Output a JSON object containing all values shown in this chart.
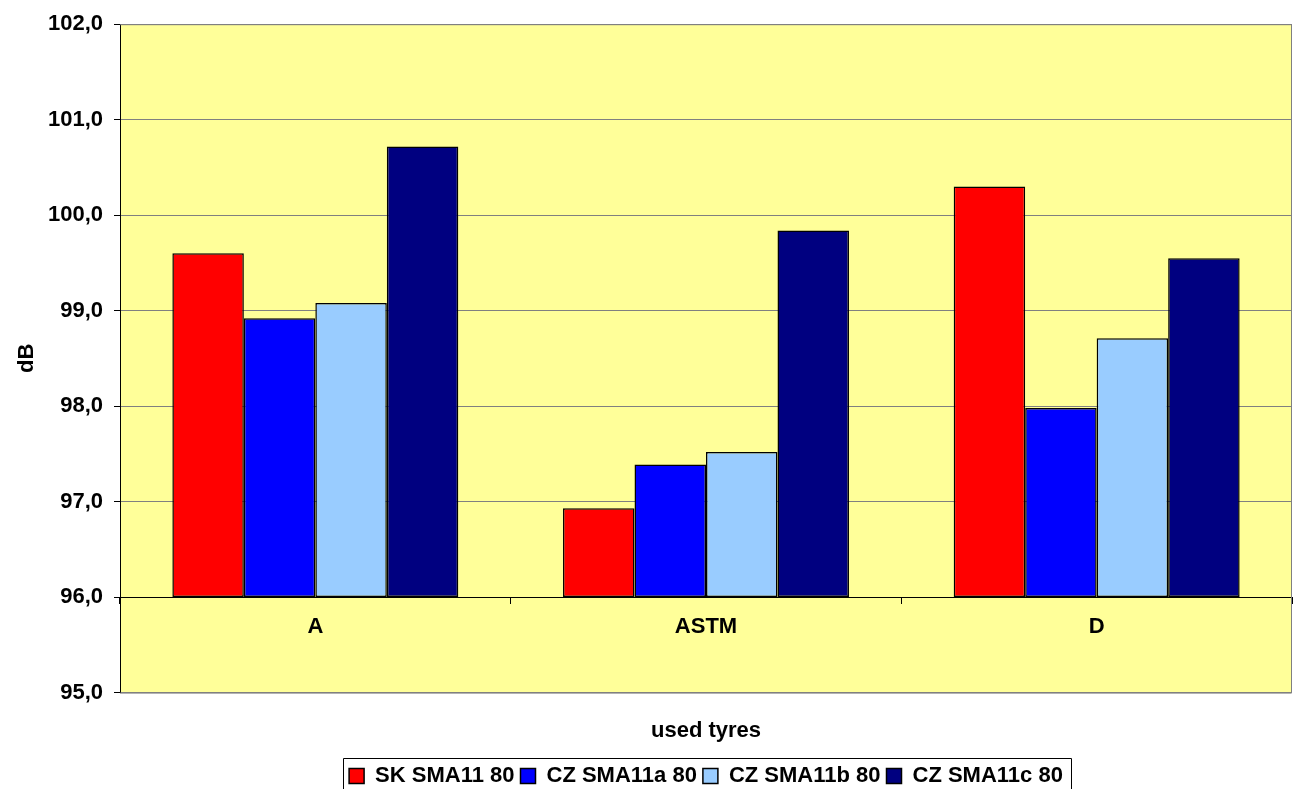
{
  "chart_data": {
    "type": "bar",
    "categories": [
      "A",
      "ASTM",
      "D"
    ],
    "xlabel": "used tyres",
    "ylabel": "dB",
    "ylim": [
      95,
      102
    ],
    "yticks": [
      {
        "value": 95,
        "label": "95,0"
      },
      {
        "value": 96,
        "label": "96,0"
      },
      {
        "value": 97,
        "label": "97,0"
      },
      {
        "value": 98,
        "label": "98,0"
      },
      {
        "value": 99,
        "label": "99,0"
      },
      {
        "value": 100,
        "label": "100,0"
      },
      {
        "value": 101,
        "label": "101,0"
      },
      {
        "value": 102,
        "label": "102,0"
      }
    ],
    "grid": "y",
    "legend": "bottom",
    "series": [
      {
        "name": "SK SMA11 80",
        "color": "#ff0000",
        "base": [
          96,
          96,
          96
        ],
        "values": [
          3.6,
          0.93,
          4.3
        ]
      },
      {
        "name": "CZ SMA11a 80",
        "color": "#0000ff",
        "base": [
          96,
          96,
          96
        ],
        "values": [
          2.92,
          1.39,
          1.98
        ]
      },
      {
        "name": "CZ SMA11b 80",
        "color": "#99ccff",
        "base": [
          96,
          96,
          96
        ],
        "values": [
          3.08,
          1.52,
          2.71
        ]
      },
      {
        "name": "CZ SMA11c 80",
        "color": "#000080",
        "base": [
          96,
          96,
          96
        ],
        "values": [
          4.72,
          3.84,
          3.55
        ]
      }
    ]
  }
}
